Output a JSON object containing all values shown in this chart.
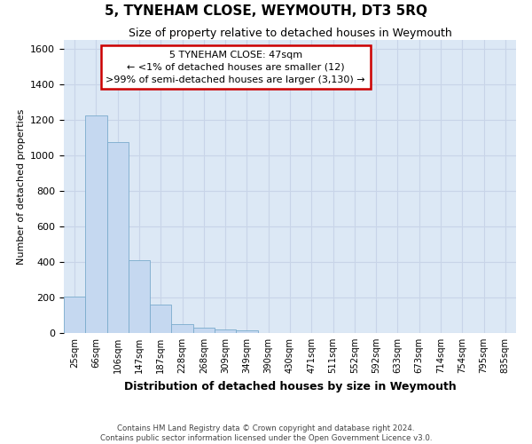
{
  "title": "5, TYNEHAM CLOSE, WEYMOUTH, DT3 5RQ",
  "subtitle": "Size of property relative to detached houses in Weymouth",
  "xlabel": "Distribution of detached houses by size in Weymouth",
  "ylabel": "Number of detached properties",
  "categories": [
    "25sqm",
    "66sqm",
    "106sqm",
    "147sqm",
    "187sqm",
    "228sqm",
    "268sqm",
    "309sqm",
    "349sqm",
    "390sqm",
    "430sqm",
    "471sqm",
    "511sqm",
    "552sqm",
    "592sqm",
    "633sqm",
    "673sqm",
    "714sqm",
    "754sqm",
    "795sqm",
    "835sqm"
  ],
  "values": [
    205,
    1225,
    1075,
    410,
    160,
    50,
    28,
    20,
    15,
    0,
    0,
    0,
    0,
    0,
    0,
    0,
    0,
    0,
    0,
    0,
    0
  ],
  "bar_color": "#c5d8f0",
  "bar_edge_color": "#7aabcc",
  "ylim": [
    0,
    1650
  ],
  "yticks": [
    0,
    200,
    400,
    600,
    800,
    1000,
    1200,
    1400,
    1600
  ],
  "annotation_text": "5 TYNEHAM CLOSE: 47sqm\n← <1% of detached houses are smaller (12)\n>99% of semi-detached houses are larger (3,130) →",
  "annotation_box_color": "#ffffff",
  "annotation_border_color": "#cc0000",
  "footer_line1": "Contains HM Land Registry data © Crown copyright and database right 2024.",
  "footer_line2": "Contains public sector information licensed under the Open Government Licence v3.0.",
  "grid_color": "#c8d4e8",
  "background_color": "#dce8f5",
  "title_fontsize": 11,
  "subtitle_fontsize": 9,
  "xlabel_fontsize": 9,
  "ylabel_fontsize": 8
}
